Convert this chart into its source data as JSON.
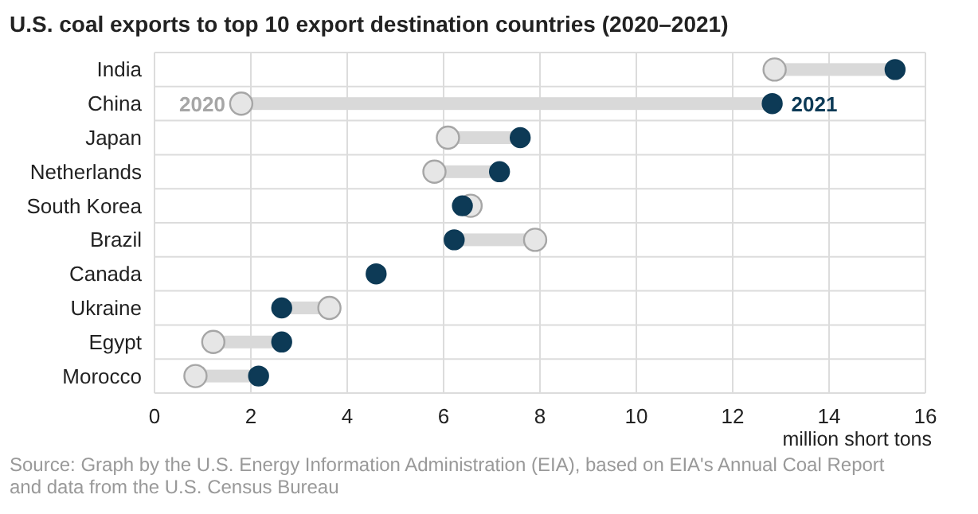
{
  "chart_data": {
    "type": "scatter",
    "orientation": "horizontal",
    "title": "U.S. coal exports to top 10 export destination countries (2020–2021)",
    "xlabel": "million short tons",
    "categories": [
      "India",
      "China",
      "Japan",
      "Netherlands",
      "South Korea",
      "Brazil",
      "Canada",
      "Ukraine",
      "Egypt",
      "Morocco"
    ],
    "series": [
      {
        "name": "2020",
        "color": "#e6e6e6",
        "values": [
          12.87,
          1.8,
          6.09,
          5.81,
          6.56,
          7.9,
          null,
          3.63,
          1.22,
          0.85
        ]
      },
      {
        "name": "2021",
        "color": "#0d3a56",
        "values": [
          15.37,
          12.82,
          7.59,
          7.16,
          6.39,
          6.22,
          4.6,
          2.64,
          2.64,
          2.16
        ]
      }
    ],
    "xlim": [
      0,
      16
    ],
    "xticks": [
      0,
      2,
      4,
      6,
      8,
      10,
      12,
      14,
      16
    ],
    "grid": true,
    "marker": "circle",
    "annotations": [
      "Source: Graph by the U.S. Energy Information Administration (EIA), based on EIA's Annual Coal Report and data from the U.S. Census Bureau"
    ]
  }
}
